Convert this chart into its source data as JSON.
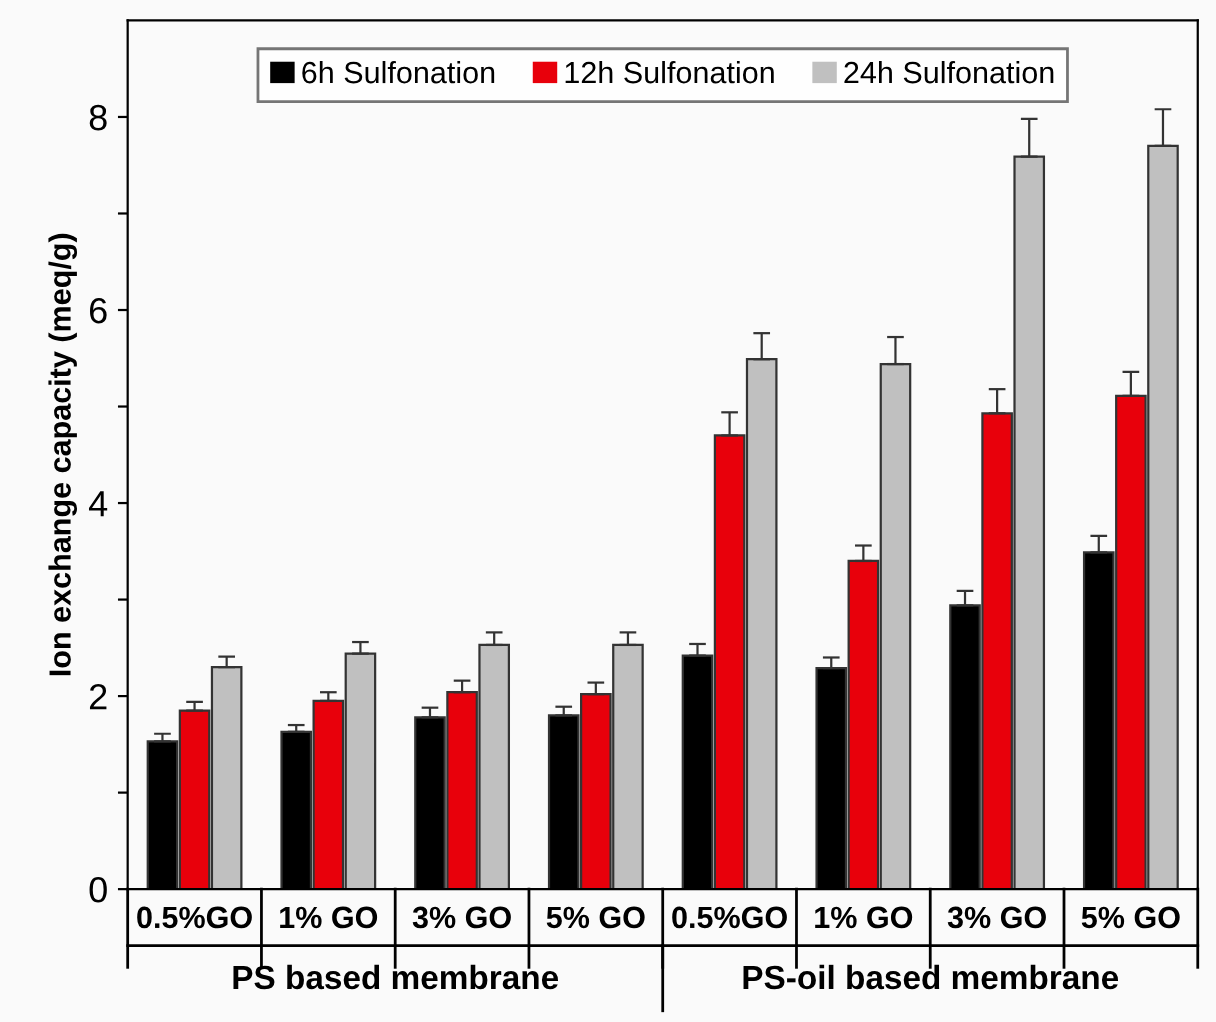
{
  "chart_data": {
    "type": "bar",
    "ylabel": "Ion exchange capacity (meq/g)",
    "categories": [
      "0.5%GO",
      "1% GO",
      "3% GO",
      "5% GO",
      "0.5%GO",
      "1% GO",
      "3% GO",
      "5% GO"
    ],
    "series": [
      {
        "name": "6h Sulfonation",
        "color": "#000000",
        "values": [
          1.53,
          1.63,
          1.78,
          1.8,
          2.42,
          2.29,
          2.94,
          3.49
        ],
        "errors": [
          0.08,
          0.07,
          0.1,
          0.09,
          0.12,
          0.11,
          0.15,
          0.17
        ]
      },
      {
        "name": "12h Sulfonation",
        "color": "#e8000b",
        "values": [
          1.85,
          1.95,
          2.04,
          2.02,
          4.7,
          3.4,
          4.93,
          5.11
        ],
        "errors": [
          0.09,
          0.09,
          0.12,
          0.12,
          0.24,
          0.16,
          0.25,
          0.25
        ]
      },
      {
        "name": "24h Sulfonation",
        "color": "#c0c0c0",
        "values": [
          2.3,
          2.44,
          2.53,
          2.53,
          5.49,
          5.44,
          7.59,
          7.7
        ],
        "errors": [
          0.11,
          0.12,
          0.13,
          0.13,
          0.27,
          0.28,
          0.39,
          0.38
        ]
      }
    ],
    "annotations": [
      "PS based membrane",
      "PS-oil based membrane"
    ],
    "ylim": [
      0,
      9
    ],
    "yticks": [
      0,
      {
        "value": 1,
        "label": null
      },
      2,
      {
        "value": 3,
        "label": null
      },
      4,
      {
        "value": 5,
        "label": null
      },
      6,
      {
        "value": 7,
        "label": null
      },
      8
    ],
    "legend": "top",
    "grid": false
  }
}
